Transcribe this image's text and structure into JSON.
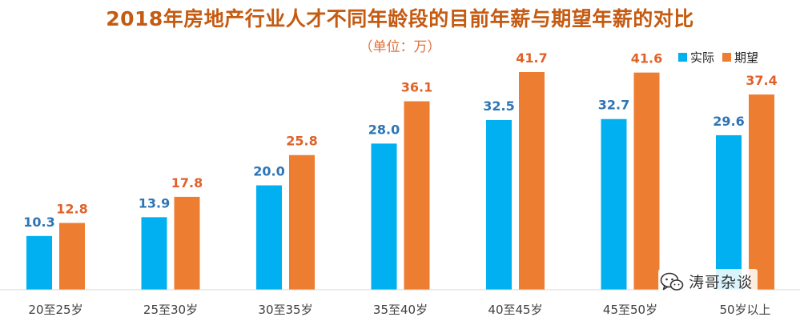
{
  "chart_data": {
    "type": "bar",
    "title": "2018年房地产行业人才不同年龄段的目前年薪与期望年薪的对比",
    "subtitle": "（单位：万）",
    "categories": [
      "20至25岁",
      "25至30岁",
      "30至35岁",
      "35至40岁",
      "40至45岁",
      "45至50岁",
      "50岁以上"
    ],
    "series": [
      {
        "name": "实际",
        "color": "#00b0f0",
        "label_color": "#2e75b6",
        "values": [
          10.3,
          13.9,
          20.0,
          28.0,
          32.5,
          32.7,
          29.6
        ]
      },
      {
        "name": "期望",
        "color": "#ed7d31",
        "label_color": "#e0622a",
        "values": [
          12.8,
          17.8,
          25.8,
          36.1,
          41.7,
          41.6,
          37.4
        ]
      }
    ],
    "value_labels": [
      [
        "10.3",
        "13.9",
        "20.0",
        "28.0",
        "32.5",
        "32.7",
        "29.6"
      ],
      [
        "12.8",
        "17.8",
        "25.8",
        "36.1",
        "41.7",
        "41.6",
        "37.4"
      ]
    ],
    "ylim": [
      0,
      45
    ],
    "grid": false,
    "legend_position": "top-right",
    "title_color": "#c55a11",
    "subtitle_color": "#e06f3a"
  },
  "watermark": {
    "text": "涛哥杂谈",
    "icon": "wechat-icon"
  }
}
